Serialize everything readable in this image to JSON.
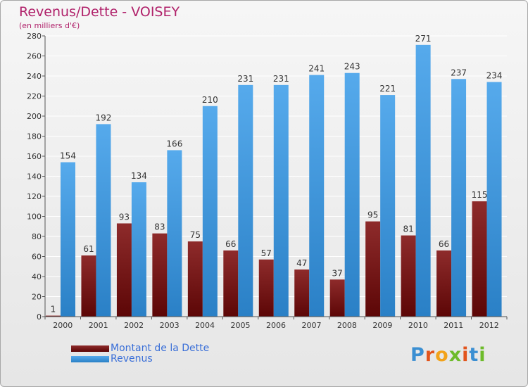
{
  "title": "Revenus/Dette - VOISEY",
  "subtitle": "(en milliers d'€)",
  "logo": {
    "text": "Proxiti"
  },
  "colors": {
    "title": "#b0216a",
    "debt": "#7a1414",
    "revenue": "#3b95dd",
    "legend_text": "#3a6fd8"
  },
  "chart_data": {
    "type": "bar",
    "title": "Revenus/Dette - VOISEY",
    "ylabel": "(en milliers d'€)",
    "categories": [
      "2000",
      "2001",
      "2002",
      "2003",
      "2004",
      "2005",
      "2006",
      "2007",
      "2008",
      "2009",
      "2010",
      "2011",
      "2012"
    ],
    "yticks": [
      0,
      20,
      40,
      60,
      80,
      100,
      120,
      140,
      160,
      180,
      200,
      220,
      240,
      260,
      280
    ],
    "ylim": [
      0,
      280
    ],
    "grid": true,
    "legend_position": "bottom-left",
    "series": [
      {
        "name": "Montant de la Dette",
        "color": "#7a1414",
        "values": [
          1,
          61,
          93,
          83,
          75,
          66,
          57,
          47,
          37,
          95,
          81,
          66,
          115
        ]
      },
      {
        "name": "Revenus",
        "color": "#3b95dd",
        "values": [
          154,
          192,
          134,
          166,
          210,
          231,
          231,
          241,
          243,
          221,
          271,
          237,
          234
        ]
      }
    ]
  }
}
